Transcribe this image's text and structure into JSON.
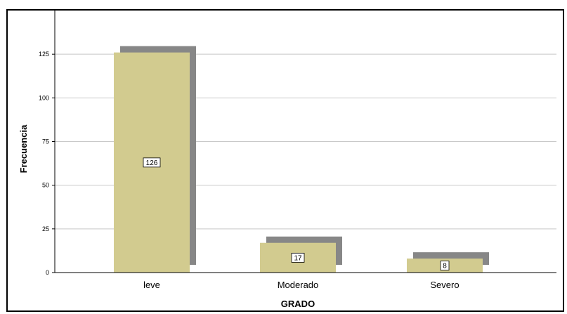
{
  "chart_data": {
    "type": "bar",
    "title": "",
    "xlabel": "GRADO",
    "ylabel": "Frecuencia",
    "categories": [
      "leve",
      "Moderado",
      "Severo"
    ],
    "series": [
      {
        "values": [
          126,
          17,
          8
        ]
      }
    ],
    "data_labels": [
      "126",
      "17",
      "8"
    ],
    "ylim": [
      0,
      150
    ],
    "yticks": [
      0,
      25,
      50,
      75,
      100,
      125
    ],
    "ytick_labels": [
      "0",
      "25",
      "50",
      "75",
      "100",
      "125"
    ],
    "grid": "horizontal",
    "legend": "none",
    "style": "3d-shadow",
    "colors": {
      "bar_face": "#D2CB8F",
      "bar_shadow": "#878787",
      "gridline": "#C8C8C8",
      "axis": "#000000",
      "frame": "#000000"
    }
  }
}
